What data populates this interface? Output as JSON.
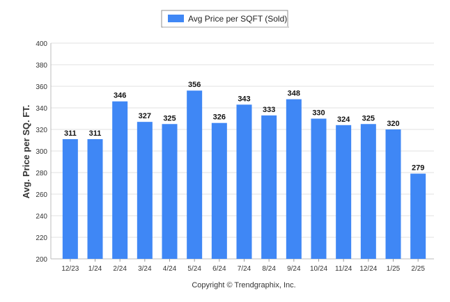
{
  "chart_data": {
    "type": "bar",
    "legend": "top-center",
    "grid": true,
    "ylabel": "Avg. Price per SQ. FT.",
    "xlabel": "",
    "ylim": [
      200,
      400
    ],
    "yticks": [
      "400",
      "380",
      "360",
      "340",
      "320",
      "300",
      "280",
      "260",
      "240",
      "220",
      "200"
    ],
    "categories": [
      "12/23",
      "1/24",
      "2/24",
      "3/24",
      "4/24",
      "5/24",
      "6/24",
      "7/24",
      "8/24",
      "9/24",
      "10/24",
      "11/24",
      "12/24",
      "1/25",
      "2/25"
    ],
    "series": [
      {
        "name": "Avg Price per SQFT (Sold)",
        "color": "#3f87f5",
        "values": [
          311,
          311,
          346,
          327,
          325,
          356,
          326,
          343,
          333,
          348,
          330,
          324,
          325,
          320,
          279
        ]
      }
    ],
    "footer": "Copyright © Trendgraphix, Inc."
  }
}
